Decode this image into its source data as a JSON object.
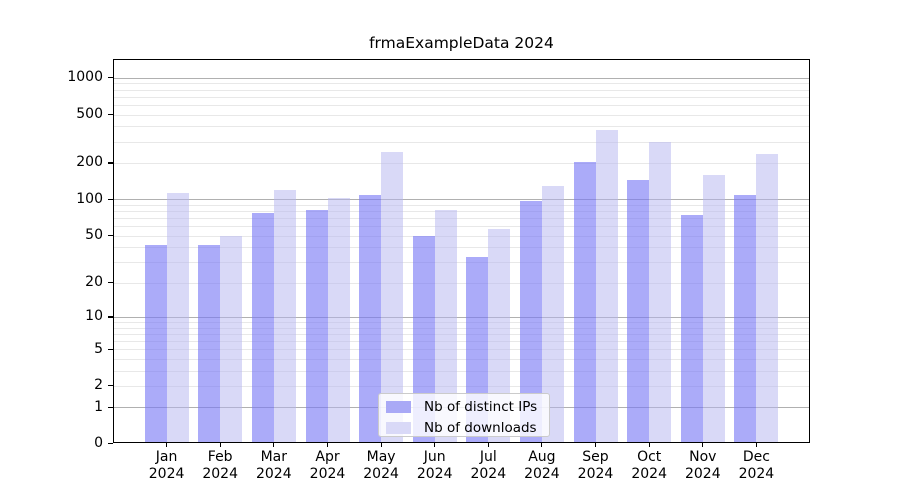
{
  "title": "frmaExampleData 2024",
  "legend": {
    "position": "lower center",
    "items": [
      {
        "label": "Nb of distinct IPs",
        "series": "ips"
      },
      {
        "label": "Nb of downloads",
        "series": "downloads"
      }
    ]
  },
  "x_axis": {
    "months": [
      "Jan",
      "Feb",
      "Mar",
      "Apr",
      "May",
      "Jun",
      "Jul",
      "Aug",
      "Sep",
      "Oct",
      "Nov",
      "Dec"
    ],
    "year": "2024"
  },
  "y_axis": {
    "scale": "log1p",
    "ticks": [
      {
        "value": 1000,
        "label": "1000"
      },
      {
        "value": 500,
        "label": "500"
      },
      {
        "value": 200,
        "label": "200"
      },
      {
        "value": 100,
        "label": "100"
      },
      {
        "value": 50,
        "label": "50"
      },
      {
        "value": 20,
        "label": "20"
      },
      {
        "value": 10,
        "label": "10"
      },
      {
        "value": 5,
        "label": "5"
      },
      {
        "value": 2,
        "label": "2"
      },
      {
        "value": 1,
        "label": "1"
      },
      {
        "value": 0,
        "label": "0"
      }
    ],
    "major_values": [
      1,
      10,
      100,
      1000
    ],
    "minor_grid_subs": [
      2,
      3,
      4,
      5,
      6,
      7,
      8,
      9
    ]
  },
  "chart_data": {
    "type": "bar",
    "title": "frmaExampleData 2024",
    "categories": [
      "Jan 2024",
      "Feb 2024",
      "Mar 2024",
      "Apr 2024",
      "May 2024",
      "Jun 2024",
      "Jul 2024",
      "Aug 2024",
      "Sep 2024",
      "Oct 2024",
      "Nov 2024",
      "Dec 2024"
    ],
    "series": [
      {
        "name": "Nb of distinct IPs",
        "values": [
          42,
          42,
          77,
          81,
          108,
          50,
          33,
          97,
          204,
          146,
          74,
          108
        ]
      },
      {
        "name": "Nb of downloads",
        "values": [
          113,
          50,
          120,
          102,
          248,
          81,
          57,
          130,
          375,
          295,
          160,
          235
        ]
      }
    ],
    "xlabel": "",
    "ylabel": "",
    "yscale": "log1p",
    "ylim": [
      0,
      1430
    ],
    "yticks": [
      0,
      1,
      2,
      5,
      10,
      20,
      50,
      100,
      200,
      500,
      1000
    ],
    "grid": true,
    "legend_position": "lower center"
  },
  "colors": {
    "ips_bar": "rgba(120,120,245,0.62)",
    "downloads_bar": "rgba(180,180,240,0.5)",
    "ips_swatch": "#a9a9f6",
    "downloads_swatch": "#d9d9f7",
    "grid_major": "#b0b0b0",
    "grid_minor": "#e8e8e8",
    "axis": "#000000",
    "background": "#ffffff"
  }
}
